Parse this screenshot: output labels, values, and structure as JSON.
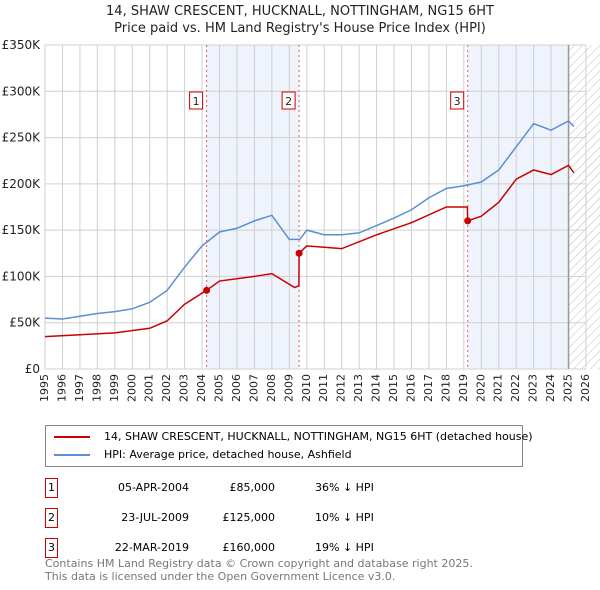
{
  "chart_data": {
    "type": "line",
    "title": "14, SHAW CRESCENT, HUCKNALL, NOTTINGHAM, NG15 6HT",
    "subtitle": "Price paid vs. HM Land Registry's House Price Index (HPI)",
    "xlim": [
      1995,
      2026
    ],
    "ylim": [
      0,
      350000
    ],
    "y_ticks": [
      0,
      50000,
      100000,
      150000,
      200000,
      250000,
      300000,
      350000
    ],
    "y_tick_labels": [
      "£0",
      "£50K",
      "£100K",
      "£150K",
      "£200K",
      "£250K",
      "£300K",
      "£350K"
    ],
    "x_ticks": [
      1995,
      1996,
      1997,
      1998,
      1999,
      2000,
      2001,
      2002,
      2003,
      2004,
      2005,
      2006,
      2007,
      2008,
      2009,
      2010,
      2011,
      2012,
      2013,
      2014,
      2015,
      2016,
      2017,
      2018,
      2019,
      2020,
      2021,
      2022,
      2023,
      2024,
      2025,
      2026
    ],
    "grid": true,
    "series": [
      {
        "name": "14, SHAW CRESCENT, HUCKNALL, NOTTINGHAM, NG15 6HT (detached house)",
        "color": "#cc0000",
        "x": [
          1995,
          1997,
          1999,
          2001,
          2002,
          2003,
          2004.26,
          2005,
          2007,
          2008,
          2009.3,
          2009.55,
          2009.56,
          2010,
          2012,
          2014,
          2016,
          2018,
          2019.2,
          2019.22,
          2020,
          2021,
          2022,
          2023,
          2024,
          2025,
          2025.3
        ],
        "y": [
          35000,
          37000,
          39000,
          44000,
          52000,
          70000,
          85000,
          95000,
          100000,
          103000,
          88000,
          90000,
          125000,
          133000,
          130000,
          145000,
          158000,
          175000,
          175000,
          160000,
          165000,
          180000,
          205000,
          215000,
          210000,
          220000,
          212000
        ]
      },
      {
        "name": "HPI: Average price, detached house, Ashfield",
        "color": "#5b8fd4",
        "x": [
          1995,
          1996,
          1997,
          1998,
          1999,
          2000,
          2001,
          2002,
          2003,
          2004,
          2005,
          2006,
          2007,
          2008,
          2009,
          2009.6,
          2010,
          2011,
          2012,
          2013,
          2014,
          2015,
          2016,
          2017,
          2018,
          2019,
          2020,
          2021,
          2022,
          2023,
          2024,
          2025,
          2025.3
        ],
        "y": [
          55000,
          54000,
          57000,
          60000,
          62000,
          65000,
          72000,
          85000,
          110000,
          133000,
          148000,
          152000,
          160000,
          166000,
          140000,
          140000,
          150000,
          145000,
          145000,
          147000,
          155000,
          163000,
          172000,
          185000,
          195000,
          198000,
          202000,
          215000,
          240000,
          265000,
          258000,
          268000,
          262000
        ]
      }
    ],
    "sales": [
      {
        "n": "1",
        "date": "05-APR-2004",
        "x": 2004.26,
        "price": "£85,000",
        "value": 85000,
        "hpi": "36% ↓ HPI"
      },
      {
        "n": "2",
        "date": "23-JUL-2009",
        "x": 2009.56,
        "price": "£125,000",
        "value": 125000,
        "hpi": "10% ↓ HPI"
      },
      {
        "n": "3",
        "date": "22-MAR-2019",
        "x": 2019.22,
        "price": "£160,000",
        "value": 160000,
        "hpi": "19% ↓ HPI"
      }
    ],
    "shaded": [
      [
        2004.26,
        2009.56
      ],
      [
        2019.22,
        2025.0
      ]
    ],
    "future_from": 2025.0
  },
  "footer": [
    "Contains HM Land Registry data © Crown copyright and database right 2025.",
    "This data is licensed under the Open Government Licence v3.0."
  ]
}
